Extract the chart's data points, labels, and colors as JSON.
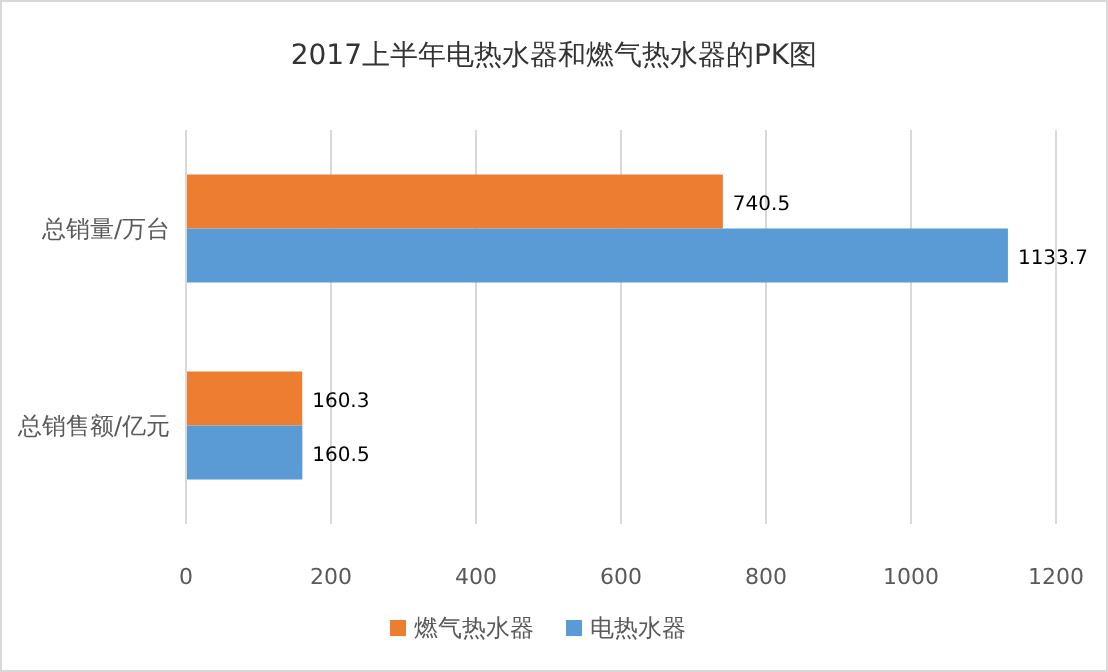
{
  "chart_data": {
    "type": "bar",
    "orientation": "horizontal",
    "title": "2017上半年电热水器和燃气热水器的PK图",
    "categories": [
      "总销量/万台",
      "总销售额/亿元"
    ],
    "series": [
      {
        "name": "燃气热水器",
        "color": "#ed7d31",
        "values": [
          740.5,
          160.3
        ]
      },
      {
        "name": "电热水器",
        "color": "#5b9bd5",
        "values": [
          1133.7,
          160.5
        ]
      }
    ],
    "xlim": [
      0,
      1200
    ],
    "xticks": [
      0,
      200,
      400,
      600,
      800,
      1000,
      1200
    ],
    "grid": "x",
    "legend": "bottom",
    "data_labels": true
  }
}
